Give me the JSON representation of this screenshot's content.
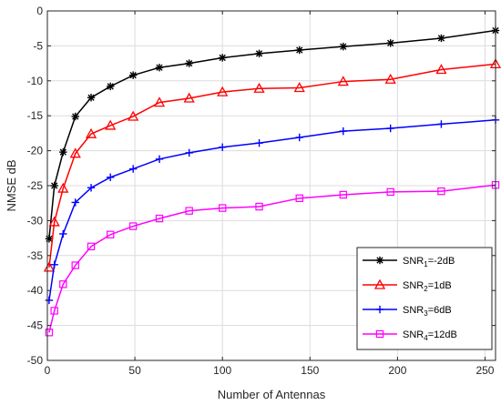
{
  "chart_data": {
    "type": "line",
    "xlabel": "Number of Antennas",
    "ylabel": "NMSE dB",
    "xlim": [
      0,
      256
    ],
    "ylim": [
      -50,
      0
    ],
    "xticks": [
      "0",
      "50",
      "100",
      "150",
      "200",
      "250"
    ],
    "yticks": [
      "0",
      "-5",
      "-10",
      "-15",
      "-20",
      "-25",
      "-30",
      "-35",
      "-40",
      "-45",
      "-50"
    ],
    "grid": true,
    "legend_position": "bottom-right",
    "x": [
      1,
      4,
      9,
      16,
      25,
      36,
      49,
      64,
      81,
      100,
      121,
      144,
      169,
      196,
      225,
      256
    ],
    "series": [
      {
        "name": "SNR",
        "sub": "1",
        "suffix": "=-2dB",
        "color": "#000000",
        "marker": "asterisk",
        "values": [
          -32.6,
          -25.0,
          -20.2,
          -15.1,
          -12.4,
          -10.8,
          -9.2,
          -8.1,
          -7.5,
          -6.7,
          -6.1,
          -5.6,
          -5.1,
          -4.6,
          -3.9,
          -2.8
        ]
      },
      {
        "name": "SNR",
        "sub": "2",
        "suffix": "=1dB",
        "color": "#ff0000",
        "marker": "triangle",
        "values": [
          -36.7,
          -30.2,
          -25.4,
          -20.4,
          -17.6,
          -16.4,
          -15.1,
          -13.1,
          -12.5,
          -11.6,
          -11.1,
          -11.0,
          -10.1,
          -9.8,
          -8.4,
          -7.6
        ]
      },
      {
        "name": "SNR",
        "sub": "3",
        "suffix": "=6dB",
        "color": "#0000ff",
        "marker": "plus",
        "values": [
          -41.4,
          -36.3,
          -31.9,
          -27.4,
          -25.3,
          -23.8,
          -22.6,
          -21.2,
          -20.3,
          -19.5,
          -18.9,
          -18.1,
          -17.2,
          -16.8,
          -16.2,
          -15.6
        ]
      },
      {
        "name": "SNR",
        "sub": "4",
        "suffix": "=12dB",
        "color": "#ff00ff",
        "marker": "square",
        "values": [
          -46.0,
          -42.9,
          -39.1,
          -36.4,
          -33.7,
          -32.0,
          -30.8,
          -29.7,
          -28.6,
          -28.2,
          -28.0,
          -26.8,
          -26.3,
          -25.9,
          -25.8,
          -24.9
        ]
      }
    ]
  }
}
